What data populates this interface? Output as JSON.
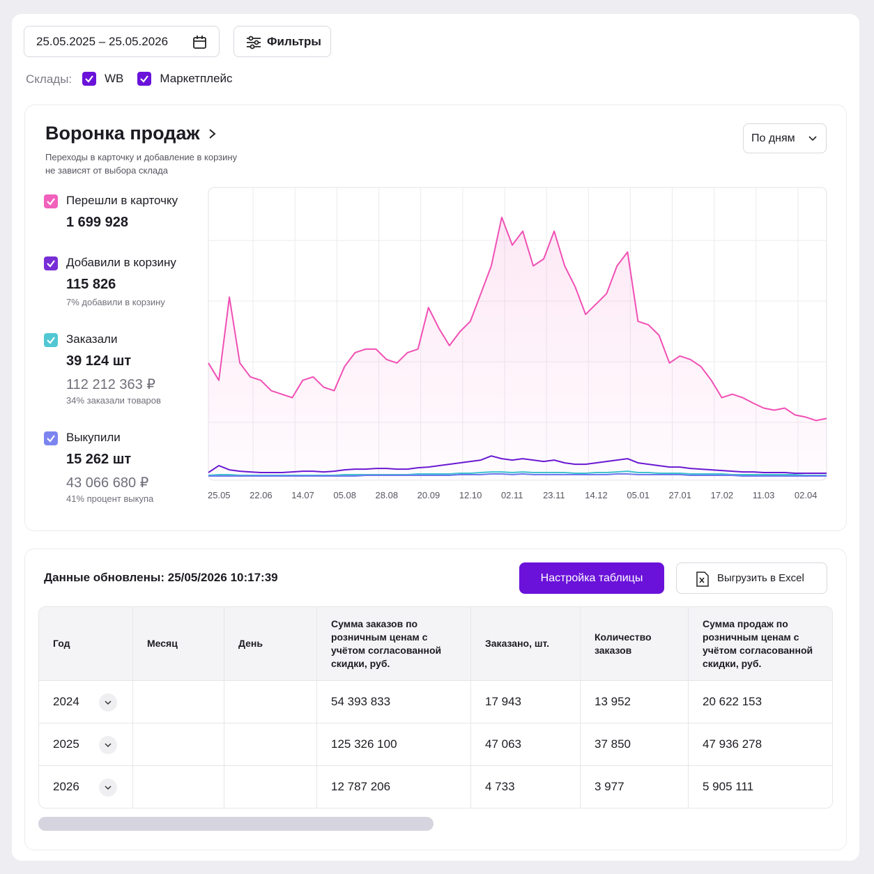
{
  "filters": {
    "date_range": "25.05.2025 – 25.05.2026",
    "filters_button": "Фильтры",
    "warehouses_label": "Склады:",
    "warehouses": [
      "WB",
      "Маркетплейс"
    ]
  },
  "funnel": {
    "title": "Воронка продаж",
    "subtitle": [
      "Переходы в карточку и добавление в корзину",
      "не зависят от выбора склада"
    ],
    "period": "По дням",
    "metrics": [
      {
        "value": "1 699 928"
      },
      {
        "value": "115 826",
        "note": "7% добавили в корзину"
      },
      {
        "value": "39 124 шт",
        "amount": "112 212 363 ₽",
        "note": "34% заказали товаров"
      },
      {
        "value": "15 262 шт",
        "amount": "43 066 680 ₽",
        "note": "41% процент выкупа"
      }
    ]
  },
  "chart_data": {
    "type": "line",
    "grid": true,
    "categories": [
      "25.05",
      null,
      null,
      null,
      "22.06",
      null,
      null,
      null,
      "14.07",
      null,
      null,
      null,
      "05.08",
      null,
      null,
      null,
      "28.08",
      null,
      null,
      null,
      "20.09",
      null,
      null,
      null,
      "12.10",
      null,
      null,
      null,
      "02.11",
      null,
      null,
      null,
      "23.11",
      null,
      null,
      null,
      "14.12",
      null,
      null,
      null,
      "05.01",
      null,
      null,
      null,
      "27.01",
      null,
      null,
      null,
      "17.02",
      null,
      null,
      null,
      "11.03",
      null,
      null,
      null,
      "02.04",
      null,
      null,
      null
    ],
    "ylim": [
      0,
      10500
    ],
    "series": [
      {
        "name": "Перешли в карточку",
        "color": "#f04fb4",
        "area": true,
        "values": [
          4200,
          3575,
          6575,
          4200,
          3700,
          3575,
          3200,
          3075,
          2950,
          3575,
          3700,
          3325,
          3200,
          4075,
          4575,
          4700,
          4700,
          4325,
          4200,
          4575,
          4700,
          6200,
          5450,
          4825,
          5325,
          5700,
          6700,
          7700,
          9450,
          8450,
          8950,
          7700,
          7950,
          8950,
          7700,
          6950,
          5950,
          6325,
          6700,
          7700,
          8200,
          5700,
          5575,
          5200,
          4200,
          4450,
          4325,
          4075,
          3575,
          2950,
          3075,
          2950,
          2750,
          2575,
          2500,
          2575,
          2325,
          2250,
          2125,
          2200
        ]
      },
      {
        "name": "Добавили в корзину",
        "color": "#6a18d2",
        "values": [
          250,
          500,
          350,
          300,
          275,
          250,
          250,
          250,
          275,
          300,
          300,
          275,
          300,
          350,
          375,
          375,
          400,
          400,
          375,
          375,
          425,
          450,
          500,
          550,
          600,
          650,
          700,
          850,
          750,
          700,
          750,
          700,
          650,
          700,
          600,
          550,
          550,
          600,
          650,
          700,
          750,
          600,
          550,
          500,
          450,
          450,
          400,
          375,
          350,
          325,
          300,
          275,
          275,
          250,
          250,
          250,
          225,
          225,
          225,
          225
        ]
      },
      {
        "name": "Заказали",
        "color": "#3fc2cf",
        "values": [
          150,
          175,
          175,
          150,
          150,
          150,
          150,
          150,
          150,
          150,
          150,
          150,
          150,
          175,
          175,
          175,
          175,
          175,
          175,
          175,
          200,
          200,
          200,
          200,
          225,
          225,
          250,
          275,
          275,
          250,
          275,
          250,
          250,
          250,
          250,
          225,
          225,
          250,
          250,
          275,
          300,
          250,
          250,
          225,
          225,
          225,
          200,
          200,
          200,
          200,
          175,
          175,
          175,
          175,
          175,
          175,
          175,
          150,
          150,
          150
        ]
      },
      {
        "name": "Выкупили",
        "color": "#6e78ee",
        "values": [
          125,
          125,
          125,
          125,
          125,
          125,
          125,
          125,
          125,
          125,
          125,
          125,
          125,
          125,
          125,
          150,
          150,
          150,
          150,
          150,
          150,
          150,
          150,
          150,
          175,
          175,
          175,
          200,
          200,
          175,
          200,
          175,
          175,
          175,
          175,
          175,
          175,
          175,
          175,
          200,
          200,
          175,
          175,
          175,
          175,
          175,
          150,
          150,
          150,
          150,
          150,
          125,
          125,
          125,
          125,
          125,
          125,
          125,
          125,
          125
        ]
      }
    ]
  },
  "table": {
    "updated": "Данные обновлены: 25/05/2026 10:17:39",
    "settings_button": "Настройка таблицы",
    "export_button": "Выгрузить в Excel",
    "columns": [
      "Год",
      "Месяц",
      "День",
      "Сумма заказов по розничным ценам с учётом согласованной скидки, руб.",
      "Заказано, шт.",
      "Количество заказов",
      "Сумма продаж по розничным ценам с учётом согласованной скидки, руб."
    ],
    "rows": [
      {
        "year": "2024",
        "values": [
          "54 393 833",
          "17 943",
          "13 952",
          "20 622 153"
        ]
      },
      {
        "year": "2025",
        "values": [
          "125 326 100",
          "47 063",
          "37 850",
          "47 936 278"
        ]
      },
      {
        "year": "2026",
        "values": [
          "12 787 206",
          "4 733",
          "3 977",
          "5 905 111"
        ]
      }
    ]
  }
}
